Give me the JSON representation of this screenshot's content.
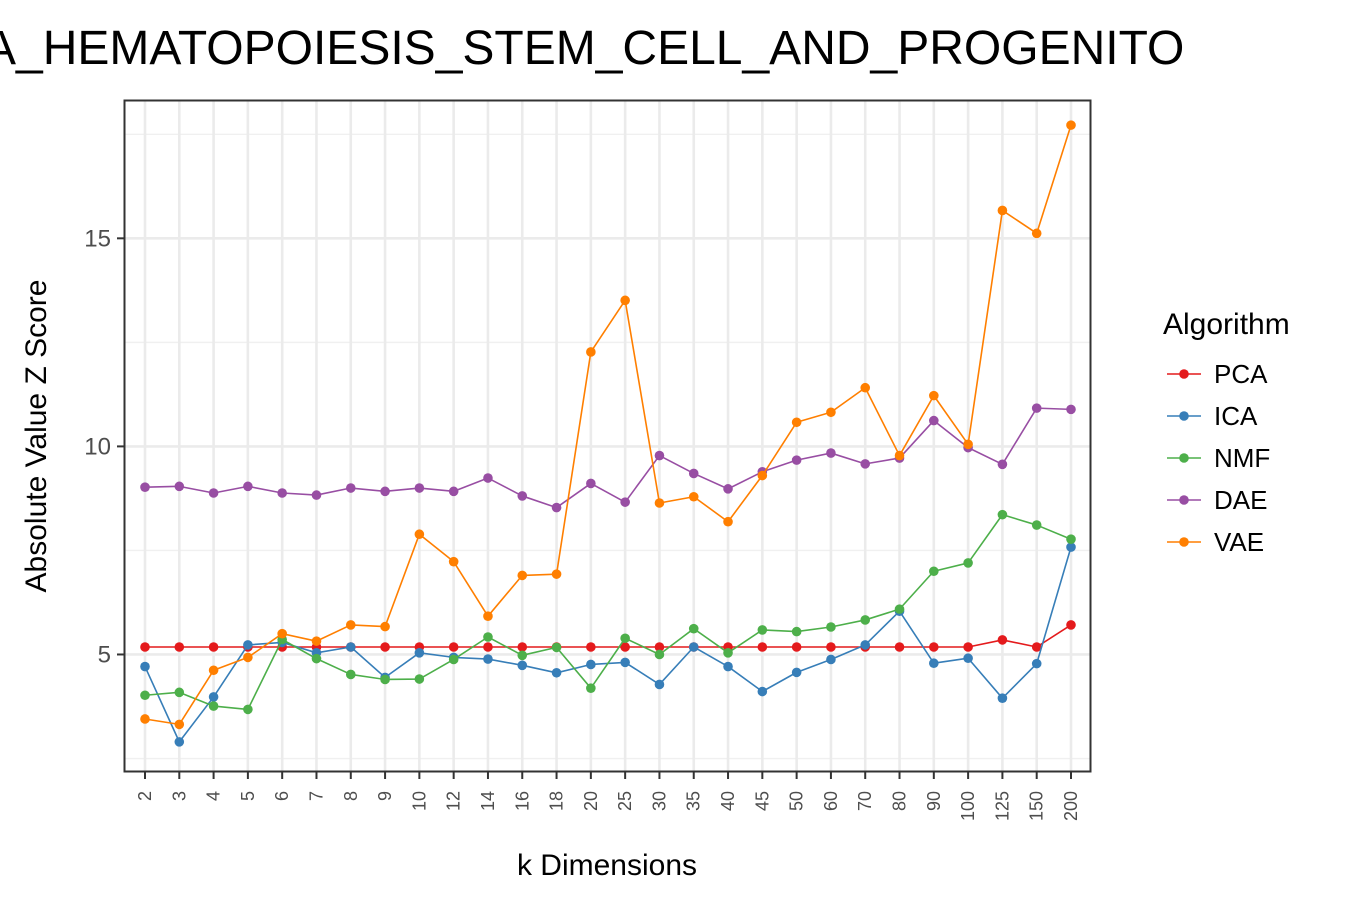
{
  "chart_data": {
    "type": "line",
    "title": "A_HEMATOPOIESIS_STEM_CELL_AND_PROGENITO",
    "xlabel": "k Dimensions",
    "ylabel": "Absolute Value Z Score",
    "categories": [
      "2",
      "3",
      "4",
      "5",
      "6",
      "7",
      "8",
      "9",
      "10",
      "12",
      "14",
      "16",
      "18",
      "20",
      "25",
      "30",
      "35",
      "40",
      "45",
      "50",
      "60",
      "70",
      "80",
      "90",
      "100",
      "125",
      "150",
      "200"
    ],
    "ylim": [
      2.2,
      18.3
    ],
    "yticks": [
      5,
      10,
      15
    ],
    "grid": true,
    "legend": {
      "title": "Algorithm",
      "position": "right"
    },
    "series": [
      {
        "name": "PCA",
        "color": "#e41a1c",
        "values": [
          5.18,
          5.18,
          5.18,
          5.18,
          5.18,
          5.18,
          5.18,
          5.18,
          5.18,
          5.18,
          5.18,
          5.18,
          5.18,
          5.18,
          5.18,
          5.18,
          5.18,
          5.18,
          5.18,
          5.18,
          5.18,
          5.18,
          5.18,
          5.18,
          5.18,
          5.35,
          5.18,
          5.71
        ]
      },
      {
        "name": "ICA",
        "color": "#377eb8",
        "values": [
          4.71,
          2.9,
          3.98,
          5.23,
          5.29,
          5.04,
          5.18,
          4.45,
          5.04,
          4.93,
          4.89,
          4.74,
          4.56,
          4.76,
          4.81,
          4.28,
          5.18,
          4.71,
          4.11,
          4.57,
          4.88,
          5.23,
          6.04,
          4.79,
          4.91,
          3.95,
          4.78,
          7.58
        ]
      },
      {
        "name": "NMF",
        "color": "#4daf4a",
        "values": [
          4.02,
          4.09,
          3.76,
          3.68,
          5.36,
          4.9,
          4.52,
          4.4,
          4.41,
          4.88,
          5.42,
          4.98,
          5.17,
          4.19,
          5.39,
          5.0,
          5.62,
          5.04,
          5.59,
          5.55,
          5.66,
          5.83,
          6.09,
          7.0,
          7.2,
          8.36,
          8.11,
          7.77
        ]
      },
      {
        "name": "DAE",
        "color": "#984ea3",
        "values": [
          9.02,
          9.04,
          8.88,
          9.04,
          8.88,
          8.83,
          9.0,
          8.92,
          9.0,
          8.92,
          9.24,
          8.81,
          8.53,
          9.11,
          8.66,
          9.78,
          9.35,
          8.98,
          9.39,
          9.67,
          9.84,
          9.58,
          9.72,
          10.62,
          9.97,
          9.57,
          10.92,
          10.89
        ]
      },
      {
        "name": "VAE",
        "color": "#ff7f00",
        "values": [
          3.45,
          3.32,
          4.62,
          4.93,
          5.5,
          5.32,
          5.71,
          5.67,
          7.89,
          7.23,
          5.92,
          6.9,
          6.93,
          12.27,
          13.51,
          8.64,
          8.79,
          8.19,
          9.3,
          10.58,
          10.82,
          11.41,
          9.78,
          11.22,
          10.05,
          15.67,
          15.12,
          17.72
        ]
      }
    ]
  }
}
